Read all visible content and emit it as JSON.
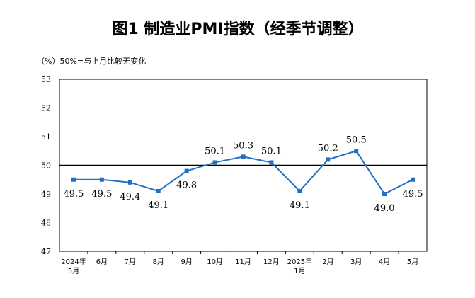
{
  "chart_data": {
    "type": "line",
    "title": "图1  制造业PMI指数（经季节调整）",
    "note": "（%）50%=与上月比较无变化",
    "categories": [
      [
        "2024年",
        "5月"
      ],
      [
        "6月"
      ],
      [
        "7月"
      ],
      [
        "8月"
      ],
      [
        "9月"
      ],
      [
        "10月"
      ],
      [
        "11月"
      ],
      [
        "12月"
      ],
      [
        "2025年",
        "1月"
      ],
      [
        "2月"
      ],
      [
        "3月"
      ],
      [
        "4月"
      ],
      [
        "5月"
      ]
    ],
    "series": [
      {
        "values": [
          49.5,
          49.5,
          49.4,
          49.1,
          49.8,
          50.1,
          50.3,
          50.1,
          49.1,
          50.2,
          50.5,
          49.0,
          49.5
        ]
      }
    ],
    "data_labels": [
      "49.5",
      "49.5",
      "49.4",
      "49.1",
      "49.8",
      "50.1",
      "50.3",
      "50.1",
      "49.1",
      "50.2",
      "50.5",
      "49.0",
      "49.5"
    ],
    "label_positions": [
      "below",
      "below",
      "below",
      "below",
      "below",
      "above",
      "above",
      "above",
      "below",
      "above",
      "above",
      "below",
      "below"
    ],
    "yticks": [
      47,
      48,
      49,
      50,
      51,
      52,
      53
    ],
    "ylim": [
      47,
      53
    ],
    "reference_line": 50,
    "grid": false,
    "legend": "none",
    "colors": {
      "series": "#1f6fc5",
      "reference": "#000000",
      "axis": "#000000"
    }
  }
}
